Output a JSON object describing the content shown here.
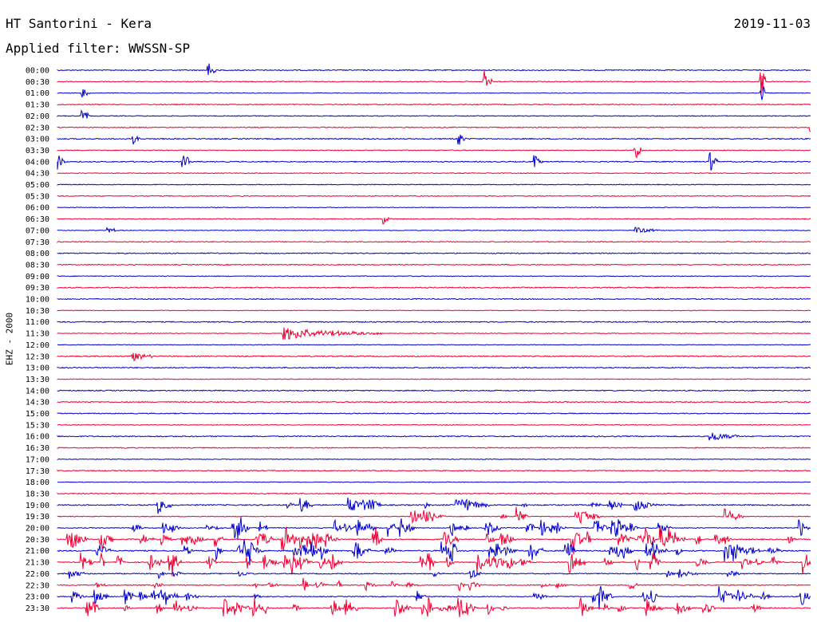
{
  "header": {
    "title": "HT Santorini - Kera",
    "date": "2019-11-03",
    "filter": "Applied filter: WWSSN-SP"
  },
  "channel_label": "EHZ - 2000",
  "colors": {
    "even": "#0000cc",
    "odd": "#ee0033",
    "text": "#000000"
  },
  "chart_data": {
    "type": "line",
    "title": "HT Santorini - Kera",
    "ylabel": "EHZ - 2000",
    "tick_labels": [
      "00:00",
      "00:30",
      "01:00",
      "01:30",
      "02:00",
      "02:30",
      "03:00",
      "03:30",
      "04:00",
      "04:30",
      "05:00",
      "05:30",
      "06:00",
      "06:30",
      "07:00",
      "07:30",
      "08:00",
      "08:30",
      "09:00",
      "09:30",
      "10:00",
      "10:30",
      "11:00",
      "11:30",
      "12:00",
      "12:30",
      "13:00",
      "13:30",
      "14:00",
      "14:30",
      "15:00",
      "15:30",
      "16:00",
      "16:30",
      "17:00",
      "17:30",
      "18:00",
      "18:30",
      "19:00",
      "19:30",
      "20:00",
      "20:30",
      "21:00",
      "21:30",
      "22:00",
      "22:30",
      "23:00",
      "23:30"
    ],
    "row_duration_minutes": 30,
    "series_colors": [
      "#0000cc",
      "#ee0033"
    ],
    "events": [
      {
        "row": 0,
        "minute": 6,
        "amp": 0.9,
        "dur": 0.3
      },
      {
        "row": 1,
        "minute": 17,
        "amp": 1.2,
        "dur": 0.3
      },
      {
        "row": 1,
        "minute": 28,
        "amp": 1.8,
        "dur": 0.2
      },
      {
        "row": 1,
        "minute": 41,
        "amp": 0.7,
        "dur": 0.2
      },
      {
        "row": 1,
        "minute": 47,
        "amp": 2.2,
        "dur": 0.2
      },
      {
        "row": 1,
        "minute": 52,
        "amp": 0.5,
        "dur": 0.2
      },
      {
        "row": 2,
        "minute": 1,
        "amp": 0.5,
        "dur": 0.3
      },
      {
        "row": 2,
        "minute": 28,
        "amp": 1.6,
        "dur": 0.2
      },
      {
        "row": 2,
        "minute": 47,
        "amp": 1.2,
        "dur": 0.2
      },
      {
        "row": 3,
        "minute": 31,
        "amp": 0.6,
        "dur": 0.2
      },
      {
        "row": 4,
        "minute": 1,
        "amp": 0.6,
        "dur": 0.3
      },
      {
        "row": 5,
        "minute": 30,
        "amp": 0.5,
        "dur": 0.3
      },
      {
        "row": 5,
        "minute": 41,
        "amp": 0.6,
        "dur": 0.3
      },
      {
        "row": 5,
        "minute": 52,
        "amp": 0.7,
        "dur": 0.3
      },
      {
        "row": 6,
        "minute": 3,
        "amp": 0.5,
        "dur": 0.3
      },
      {
        "row": 6,
        "minute": 16,
        "amp": 0.6,
        "dur": 0.3
      },
      {
        "row": 6,
        "minute": 41,
        "amp": 0.6,
        "dur": 0.3
      },
      {
        "row": 7,
        "minute": 23,
        "amp": 0.9,
        "dur": 0.3
      },
      {
        "row": 7,
        "minute": 45,
        "amp": 0.5,
        "dur": 0.3
      },
      {
        "row": 7,
        "minute": 53,
        "amp": 0.6,
        "dur": 0.3
      },
      {
        "row": 8,
        "minute": 0,
        "amp": 0.8,
        "dur": 0.3
      },
      {
        "row": 8,
        "minute": 5,
        "amp": 1.0,
        "dur": 0.3
      },
      {
        "row": 8,
        "minute": 19,
        "amp": 0.6,
        "dur": 0.3
      },
      {
        "row": 8,
        "minute": 26,
        "amp": 0.9,
        "dur": 0.3
      },
      {
        "row": 8,
        "minute": 37,
        "amp": 0.9,
        "dur": 1.5
      },
      {
        "row": 8,
        "minute": 47,
        "amp": 0.5,
        "dur": 0.3
      },
      {
        "row": 9,
        "minute": 31,
        "amp": 0.5,
        "dur": 0.3
      },
      {
        "row": 10,
        "minute": 41,
        "amp": 0.5,
        "dur": 0.3
      },
      {
        "row": 10,
        "minute": 49,
        "amp": 0.8,
        "dur": 0.3
      },
      {
        "row": 11,
        "minute": 50,
        "amp": 0.6,
        "dur": 0.3
      },
      {
        "row": 12,
        "minute": 48,
        "amp": 0.4,
        "dur": 1.6
      },
      {
        "row": 13,
        "minute": 13,
        "amp": 0.6,
        "dur": 0.2
      },
      {
        "row": 13,
        "minute": 40,
        "amp": 0.7,
        "dur": 0.3
      },
      {
        "row": 13,
        "minute": 43,
        "amp": 0.9,
        "dur": 0.3
      },
      {
        "row": 13,
        "minute": 46,
        "amp": 0.8,
        "dur": 0.3
      },
      {
        "row": 13,
        "minute": 50,
        "amp": 0.5,
        "dur": 0.3
      },
      {
        "row": 14,
        "minute": 2,
        "amp": 0.5,
        "dur": 0.3
      },
      {
        "row": 14,
        "minute": 23,
        "amp": 0.3,
        "dur": 1.2
      },
      {
        "row": 14,
        "minute": 48,
        "amp": 0.9,
        "dur": 0.3
      },
      {
        "row": 22,
        "minute": 42,
        "amp": 0.5,
        "dur": 4.0
      },
      {
        "row": 23,
        "minute": 9,
        "amp": 0.6,
        "dur": 4.0
      },
      {
        "row": 25,
        "minute": 3,
        "amp": 0.5,
        "dur": 0.8
      },
      {
        "row": 31,
        "minute": 38,
        "amp": 0.4,
        "dur": 1.0
      },
      {
        "row": 32,
        "minute": 26,
        "amp": 0.5,
        "dur": 1.2
      },
      {
        "row": 37,
        "minute": 51,
        "amp": 1.6,
        "dur": 0.3
      },
      {
        "row": 38,
        "minute": 4,
        "amp": 0.8,
        "dur": 0.6
      },
      {
        "row": 38,
        "minute": 16,
        "amp": 0.9,
        "dur": 1.2
      },
      {
        "row": 38,
        "minute": 23,
        "amp": 0.8,
        "dur": 0.5
      }
    ],
    "busy_rows": [
      {
        "row": 38,
        "start": 0,
        "end": 24,
        "density": 0.25,
        "amp": 0.7
      },
      {
        "row": 39,
        "start": 12,
        "end": 30,
        "density": 0.3,
        "amp": 0.8
      },
      {
        "row": 40,
        "start": 0,
        "end": 30,
        "density": 0.45,
        "amp": 0.9
      },
      {
        "row": 41,
        "start": 0,
        "end": 30,
        "density": 0.55,
        "amp": 1.0
      },
      {
        "row": 42,
        "start": 0,
        "end": 30,
        "density": 0.55,
        "amp": 1.0
      },
      {
        "row": 43,
        "start": 0,
        "end": 30,
        "density": 0.5,
        "amp": 1.0
      },
      {
        "row": 44,
        "start": 0,
        "end": 30,
        "density": 0.15,
        "amp": 0.5
      },
      {
        "row": 45,
        "start": 0,
        "end": 30,
        "density": 0.25,
        "amp": 0.6
      },
      {
        "row": 46,
        "start": 0,
        "end": 30,
        "density": 0.35,
        "amp": 0.9
      },
      {
        "row": 47,
        "start": 0,
        "end": 30,
        "density": 0.55,
        "amp": 1.0
      }
    ]
  }
}
